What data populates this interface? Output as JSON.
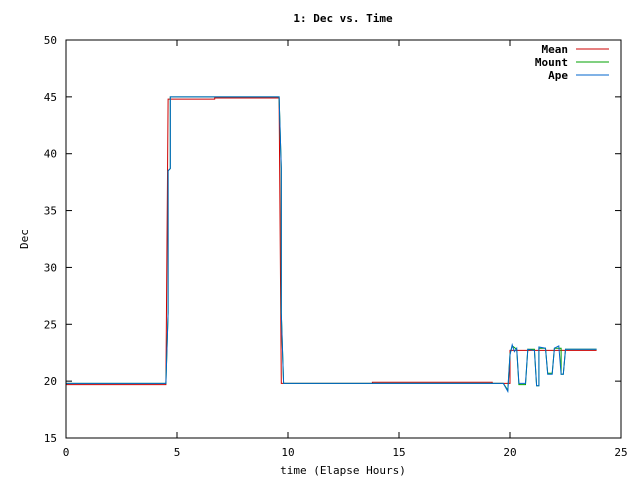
{
  "chart_data": {
    "type": "line",
    "title": "1: Dec vs. Time",
    "xlabel": "time (Elapse Hours)",
    "ylabel": "Dec",
    "xlim": [
      0,
      25
    ],
    "ylim": [
      15,
      50
    ],
    "xticks": [
      0,
      5,
      10,
      15,
      20,
      25
    ],
    "yticks": [
      15,
      20,
      25,
      30,
      35,
      40,
      45,
      50
    ],
    "grid": false,
    "legend_position": "top-right",
    "series": [
      {
        "name": "Mean",
        "color": "#cc0000",
        "points": [
          [
            0,
            19.7
          ],
          [
            4.5,
            19.7
          ],
          [
            4.6,
            44.8
          ],
          [
            6.7,
            44.8
          ],
          [
            6.7,
            44.9
          ],
          [
            9.6,
            44.9
          ],
          [
            9.7,
            19.8
          ],
          [
            13.8,
            19.8
          ],
          [
            13.8,
            19.9
          ],
          [
            19.2,
            19.9
          ],
          [
            19.2,
            19.8
          ],
          [
            20.0,
            19.8
          ],
          [
            20.0,
            22.7
          ],
          [
            23.9,
            22.7
          ]
        ]
      },
      {
        "name": "Mount",
        "color": "#00a000",
        "points": [
          [
            0,
            19.8
          ],
          [
            4.5,
            19.8
          ],
          [
            4.6,
            26.0
          ],
          [
            4.6,
            38.5
          ],
          [
            4.7,
            38.7
          ],
          [
            4.7,
            45.0
          ],
          [
            9.6,
            45.0
          ],
          [
            9.7,
            38.7
          ],
          [
            9.7,
            26.0
          ],
          [
            9.8,
            19.8
          ],
          [
            19.7,
            19.8
          ],
          [
            19.9,
            19.2
          ],
          [
            20.0,
            22.4
          ],
          [
            20.1,
            23.1
          ],
          [
            20.3,
            22.8
          ],
          [
            20.4,
            19.7
          ],
          [
            20.7,
            19.7
          ],
          [
            20.8,
            22.8
          ],
          [
            21.1,
            22.8
          ],
          [
            21.2,
            19.6
          ],
          [
            21.3,
            19.6
          ],
          [
            21.3,
            22.9
          ],
          [
            21.6,
            22.9
          ],
          [
            21.7,
            20.7
          ],
          [
            21.9,
            20.7
          ],
          [
            22.0,
            22.9
          ],
          [
            22.3,
            22.9
          ],
          [
            22.3,
            20.6
          ],
          [
            22.4,
            20.6
          ],
          [
            22.5,
            22.8
          ],
          [
            23.9,
            22.8
          ]
        ]
      },
      {
        "name": "Ape",
        "color": "#0066cc",
        "points": [
          [
            0,
            19.8
          ],
          [
            4.5,
            19.8
          ],
          [
            4.6,
            26.0
          ],
          [
            4.6,
            38.5
          ],
          [
            4.7,
            38.7
          ],
          [
            4.7,
            45.0
          ],
          [
            9.6,
            45.0
          ],
          [
            9.7,
            38.7
          ],
          [
            9.7,
            26.0
          ],
          [
            9.8,
            19.8
          ],
          [
            19.7,
            19.8
          ],
          [
            19.9,
            19.1
          ],
          [
            20.0,
            22.3
          ],
          [
            20.1,
            23.2
          ],
          [
            20.2,
            22.6
          ],
          [
            20.3,
            22.9
          ],
          [
            20.4,
            19.8
          ],
          [
            20.7,
            19.8
          ],
          [
            20.8,
            22.8
          ],
          [
            21.1,
            22.7
          ],
          [
            21.2,
            19.6
          ],
          [
            21.3,
            19.6
          ],
          [
            21.3,
            23.0
          ],
          [
            21.6,
            22.9
          ],
          [
            21.7,
            20.6
          ],
          [
            21.9,
            20.6
          ],
          [
            22.0,
            22.9
          ],
          [
            22.2,
            23.1
          ],
          [
            22.3,
            20.6
          ],
          [
            22.4,
            20.6
          ],
          [
            22.5,
            22.8
          ],
          [
            23.9,
            22.8
          ]
        ]
      }
    ]
  }
}
